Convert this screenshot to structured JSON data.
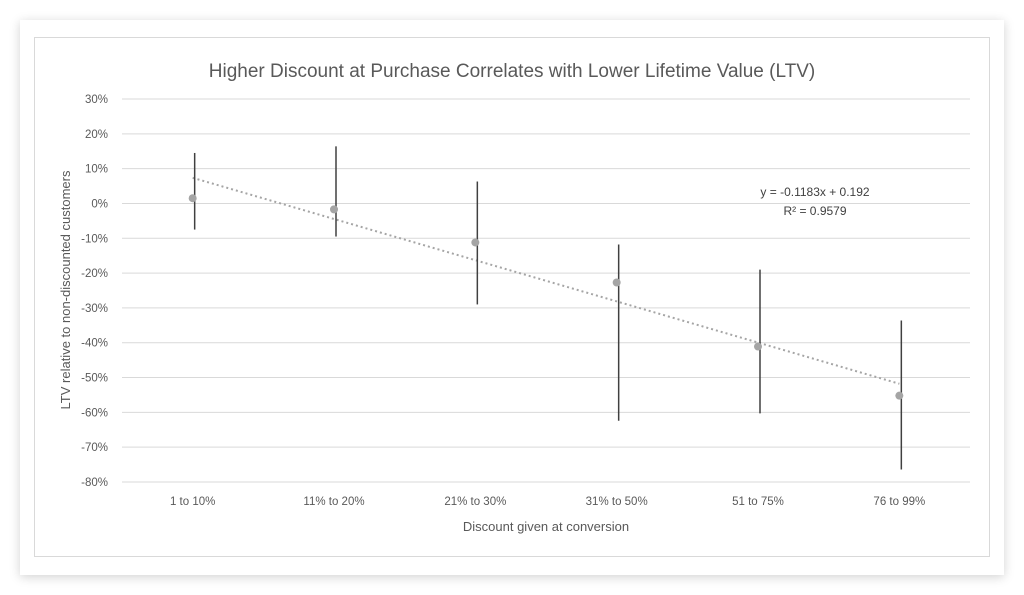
{
  "chart_data": {
    "type": "scatter",
    "title": "Higher Discount at Purchase Correlates with Lower Lifetime Value (LTV)",
    "xlabel": "Discount given at conversion",
    "ylabel": "LTV relative to non-discounted customers",
    "categories": [
      "1 to 10%",
      "11% to 20%",
      "21% to 30%",
      "31% to 50%",
      "51 to 75%",
      "76 to 99%"
    ],
    "values": [
      1.5,
      -1.7,
      -11.2,
      -22.7,
      -41.1,
      -55.2
    ],
    "error_high": [
      14.5,
      16.4,
      6.3,
      -11.8,
      -19.0,
      -33.6
    ],
    "error_low": [
      -7.5,
      -9.5,
      -29.0,
      -62.4,
      -60.3,
      -76.4
    ],
    "ylim": [
      -80,
      30
    ],
    "ytick_step": 10,
    "ytick_format": "percent",
    "grid": true,
    "trendline": {
      "type": "linear",
      "slope": -0.1183,
      "intercept": 0.192,
      "equation": "y = -0.1183x + 0.192",
      "r_squared": "R² = 0.9579"
    },
    "colors": {
      "point": "#a5a5a5",
      "error_bar": "#404040",
      "trendline": "#a5a5a5",
      "grid": "#d9d9d9",
      "text": "#595959"
    }
  }
}
